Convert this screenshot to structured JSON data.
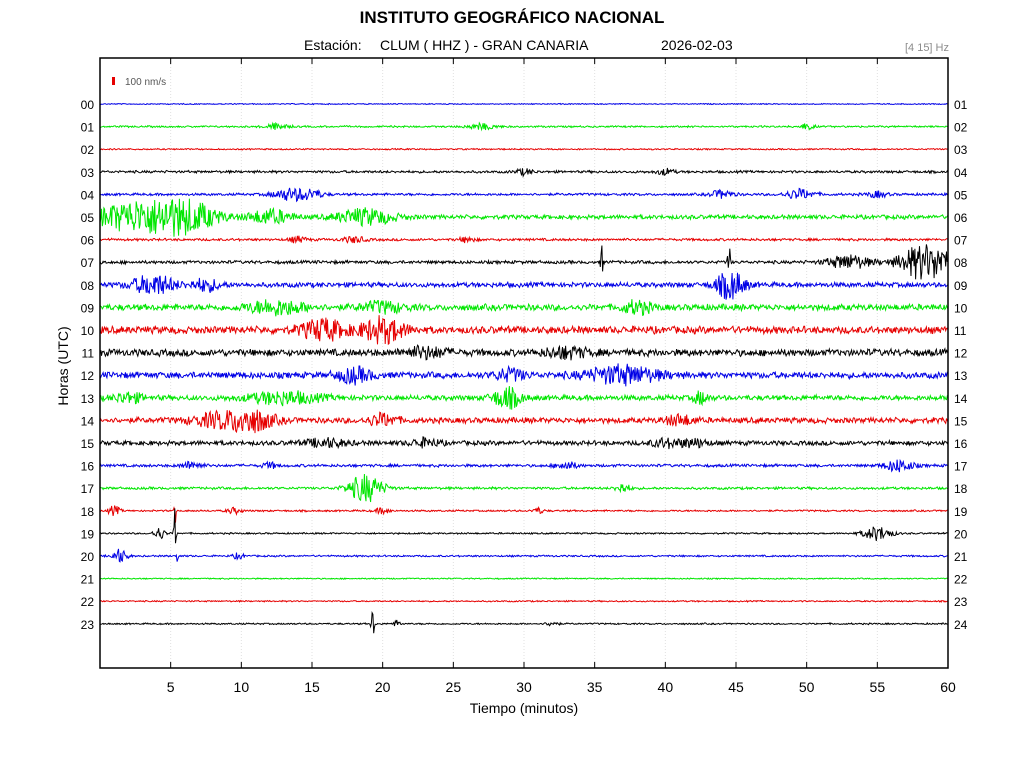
{
  "header": {
    "title": "INSTITUTO GEOGRÁFICO NACIONAL",
    "station_label": "Estación:",
    "station": "CLUM ( HHZ ) - GRAN CANARIA",
    "date": "2026-02-03",
    "filter": "[4 15] Hz"
  },
  "scale": {
    "label": "100 nm/s",
    "color": "#e60000"
  },
  "chart_data": {
    "type": "line",
    "title": "INSTITUTO GEOGRÁFICO NACIONAL",
    "xlabel": "Tiempo (minutos)",
    "ylabel": "Horas (UTC)",
    "xlim": [
      0,
      60
    ],
    "x_ticks": [
      5,
      10,
      15,
      20,
      25,
      30,
      35,
      40,
      45,
      50,
      55,
      60
    ],
    "x_tick_labels": [
      "5",
      "10",
      "15",
      "20",
      "25",
      "30",
      "35",
      "40",
      "45",
      "50",
      "55",
      "60"
    ],
    "grid": true,
    "trace_colors": [
      "#0000e6",
      "#00e600",
      "#e60000",
      "#000000"
    ],
    "left_labels": [
      "00",
      "01",
      "02",
      "03",
      "04",
      "05",
      "06",
      "07",
      "08",
      "09",
      "10",
      "11",
      "12",
      "13",
      "14",
      "15",
      "16",
      "17",
      "18",
      "19",
      "20",
      "21",
      "22",
      "23"
    ],
    "right_labels": [
      "01",
      "02",
      "03",
      "04",
      "05",
      "06",
      "07",
      "08",
      "09",
      "10",
      "11",
      "12",
      "13",
      "14",
      "15",
      "16",
      "17",
      "18",
      "19",
      "20",
      "21",
      "22",
      "23",
      "24"
    ],
    "series": [
      {
        "hour": "00",
        "noise": 0.6,
        "events": []
      },
      {
        "hour": "01",
        "noise": 1.0,
        "events": [
          [
            12.5,
            3,
            0.8
          ],
          [
            27,
            3,
            1.0
          ],
          [
            50,
            3,
            0.5
          ]
        ]
      },
      {
        "hour": "02",
        "noise": 0.8,
        "events": []
      },
      {
        "hour": "03",
        "noise": 1.4,
        "events": [
          [
            30,
            3,
            0.6
          ],
          [
            40,
            3,
            0.6
          ]
        ]
      },
      {
        "hour": "04",
        "noise": 1.4,
        "events": [
          [
            13.5,
            6,
            1.2
          ],
          [
            15,
            4,
            0.8
          ],
          [
            44,
            4,
            0.8
          ],
          [
            49.5,
            5,
            1.0
          ],
          [
            55,
            3,
            0.7
          ]
        ]
      },
      {
        "hour": "05",
        "noise": 2.4,
        "events": [
          [
            1.8,
            12,
            2.5
          ],
          [
            5,
            12,
            2.5
          ],
          [
            6.5,
            8,
            2.0
          ],
          [
            12,
            7,
            1.5
          ],
          [
            18.8,
            8,
            2.0
          ]
        ]
      },
      {
        "hour": "06",
        "noise": 1.4,
        "events": [
          [
            14,
            3,
            0.6
          ],
          [
            18,
            3,
            0.8
          ],
          [
            26,
            3,
            0.5
          ]
        ]
      },
      {
        "hour": "07",
        "noise": 1.8,
        "events": [
          [
            35.5,
            18,
            0.08
          ],
          [
            44.5,
            30,
            0.08
          ],
          [
            53,
            7,
            1.5
          ],
          [
            58,
            16,
            1.5
          ],
          [
            59.5,
            8,
            1.0
          ]
        ]
      },
      {
        "hour": "08",
        "noise": 2.8,
        "events": [
          [
            3.8,
            10,
            1.5
          ],
          [
            7.5,
            6,
            1.0
          ],
          [
            44.6,
            14,
            1.0
          ]
        ]
      },
      {
        "hour": "09",
        "noise": 3.6,
        "events": [
          [
            12.5,
            7,
            2.0
          ],
          [
            20,
            5,
            1.5
          ],
          [
            38,
            6,
            1.0
          ]
        ]
      },
      {
        "hour": "10",
        "noise": 4.2,
        "events": [
          [
            15.8,
            10,
            1.5
          ],
          [
            20,
            12,
            1.5
          ]
        ]
      },
      {
        "hour": "11",
        "noise": 4.0,
        "events": [
          [
            23,
            5,
            1.5
          ],
          [
            33,
            5,
            1.5
          ]
        ]
      },
      {
        "hour": "12",
        "noise": 3.6,
        "events": [
          [
            18,
            7,
            1.2
          ],
          [
            29,
            6,
            1.0
          ],
          [
            37,
            9,
            2.5
          ]
        ]
      },
      {
        "hour": "13",
        "noise": 3.0,
        "events": [
          [
            2,
            5,
            1.0
          ],
          [
            13,
            6,
            2.5
          ],
          [
            28.8,
            10,
            1.0
          ],
          [
            42.5,
            6,
            0.5
          ]
        ]
      },
      {
        "hour": "14",
        "noise": 3.2,
        "events": [
          [
            8.5,
            7,
            2.0
          ],
          [
            10.8,
            10,
            1.5
          ],
          [
            20,
            6,
            1.0
          ],
          [
            41,
            5,
            1.0
          ]
        ]
      },
      {
        "hour": "15",
        "noise": 2.6,
        "events": [
          [
            16,
            4,
            1.5
          ],
          [
            23,
            4,
            1.0
          ],
          [
            40,
            4,
            1.0
          ],
          [
            42,
            4,
            1.0
          ]
        ]
      },
      {
        "hour": "16",
        "noise": 1.6,
        "events": [
          [
            6.5,
            4,
            0.7
          ],
          [
            12,
            3,
            0.5
          ],
          [
            33,
            4,
            0.7
          ],
          [
            56.5,
            6,
            1.0
          ]
        ]
      },
      {
        "hour": "17",
        "noise": 1.4,
        "events": [
          [
            18.8,
            14,
            1.2
          ],
          [
            37,
            5,
            0.5
          ]
        ]
      },
      {
        "hour": "18",
        "noise": 1.0,
        "events": [
          [
            1,
            5,
            0.4
          ],
          [
            5.3,
            30,
            0.05
          ],
          [
            9.5,
            3,
            0.5
          ],
          [
            20,
            3,
            0.5
          ],
          [
            31,
            3,
            0.4
          ]
        ]
      },
      {
        "hour": "19",
        "noise": 0.9,
        "events": [
          [
            4.2,
            6,
            0.4
          ],
          [
            5.3,
            26,
            0.08
          ],
          [
            55,
            7,
            1.0
          ]
        ]
      },
      {
        "hour": "20",
        "noise": 1.0,
        "events": [
          [
            1.4,
            7,
            0.5
          ],
          [
            5.5,
            24,
            0.05
          ],
          [
            9.8,
            3,
            0.4
          ]
        ]
      },
      {
        "hour": "21",
        "noise": 0.7,
        "events": []
      },
      {
        "hour": "22",
        "noise": 0.8,
        "events": []
      },
      {
        "hour": "23",
        "noise": 0.9,
        "events": [
          [
            19.3,
            16,
            0.12
          ],
          [
            21,
            3,
            0.3
          ],
          [
            32,
            2.5,
            0.4
          ]
        ]
      }
    ]
  }
}
